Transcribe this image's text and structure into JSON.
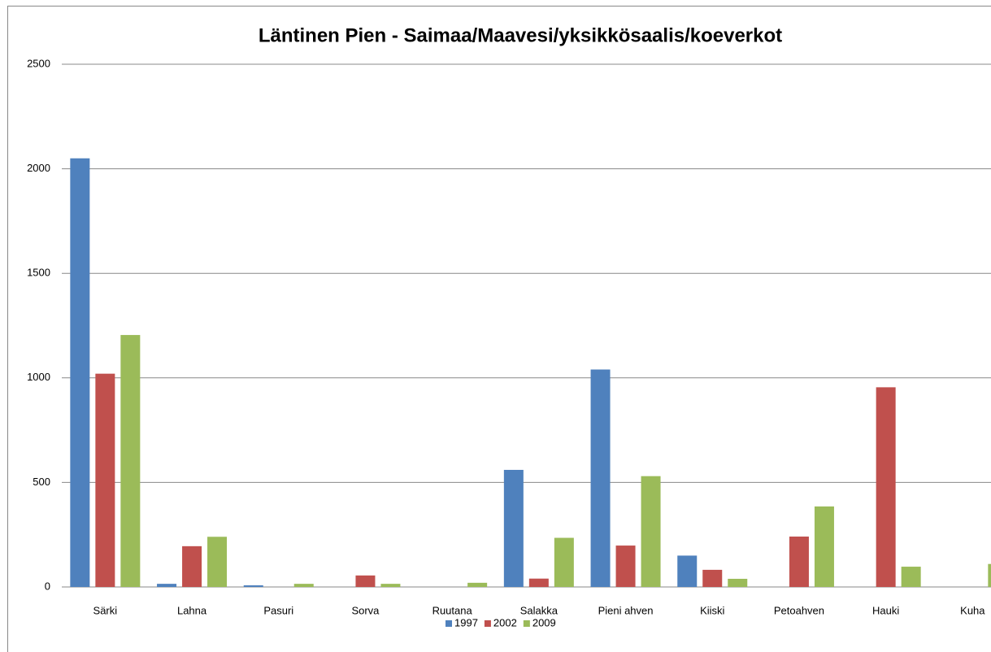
{
  "chart_data": {
    "type": "bar",
    "title": "Läntinen Pien - Saimaa/Maavesi/yksikkösaalis/koeverkot",
    "categories": [
      "Särki",
      "Lahna",
      "Pasuri",
      "Sorva",
      "Ruutana",
      "Salakka",
      "Pieni ahven",
      "Kiiski",
      "Petoahven",
      "Hauki",
      "Kuha"
    ],
    "series": [
      {
        "name": "1997",
        "color": "#4f81bd",
        "values": [
          2050,
          15,
          8,
          0,
          0,
          560,
          1040,
          150,
          0,
          0,
          0
        ]
      },
      {
        "name": "2002",
        "color": "#c0504d",
        "values": [
          1020,
          195,
          0,
          55,
          0,
          40,
          198,
          82,
          241,
          955,
          0
        ]
      },
      {
        "name": "2009",
        "color": "#9bbb59",
        "values": [
          1205,
          240,
          15,
          15,
          20,
          235,
          530,
          39,
          385,
          97,
          110
        ]
      }
    ],
    "ylim": [
      0,
      2500
    ],
    "yticks": [
      0,
      500,
      1000,
      1500,
      2000,
      2500
    ],
    "grid": true,
    "legend": "bottom"
  }
}
